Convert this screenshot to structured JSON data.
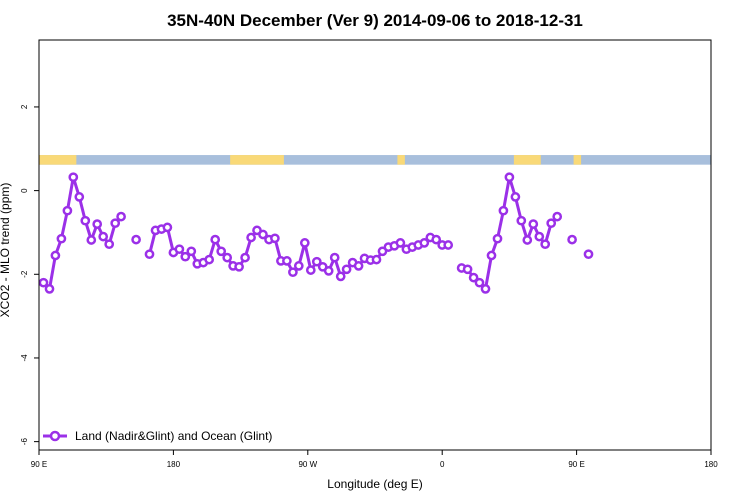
{
  "chart_data": {
    "type": "line",
    "title": "35N-40N December (Ver 9)   2014-09-06 to 2018-12-31",
    "xlabel": "Longitude (deg E)",
    "ylabel": "XCO2 - MLO trend (ppm)",
    "x_ticks": [
      {
        "value": 90,
        "label": "90 E"
      },
      {
        "value": 180,
        "label": "180"
      },
      {
        "value": 270,
        "label": "90 W"
      },
      {
        "value": 360,
        "label": "0"
      },
      {
        "value": 450,
        "label": "90 E"
      },
      {
        "value": 540,
        "label": "180"
      }
    ],
    "y_ticks": [
      -6,
      -4,
      -2,
      0,
      2
    ],
    "xlim": [
      90,
      540
    ],
    "ylim": [
      -6.2,
      3.6
    ],
    "grid": false,
    "legend": {
      "position": "bottom-left",
      "entries": [
        "Land (Nadir&Glint) and Ocean (Glint)"
      ]
    },
    "series": [
      {
        "name": "Land (Nadir&Glint) and Ocean (Glint)",
        "color": "#9b30e8",
        "segments": [
          [
            [
              93,
              -2.2
            ],
            [
              97,
              -2.35
            ],
            [
              101,
              -1.55
            ],
            [
              105,
              -1.15
            ],
            [
              109,
              -0.48
            ],
            [
              113,
              0.32
            ],
            [
              117,
              -0.15
            ],
            [
              121,
              -0.72
            ],
            [
              125,
              -1.18
            ],
            [
              129,
              -0.8
            ],
            [
              133,
              -1.1
            ],
            [
              137,
              -1.28
            ],
            [
              141,
              -0.78
            ],
            [
              145,
              -0.62
            ]
          ],
          [
            [
              155,
              -1.17
            ]
          ],
          [
            [
              164,
              -1.52
            ],
            [
              168,
              -0.95
            ],
            [
              172,
              -0.92
            ],
            [
              176,
              -0.88
            ],
            [
              180,
              -1.48
            ],
            [
              184,
              -1.4
            ],
            [
              188,
              -1.58
            ],
            [
              192,
              -1.45
            ],
            [
              196,
              -1.75
            ],
            [
              200,
              -1.72
            ],
            [
              204,
              -1.65
            ],
            [
              208,
              -1.17
            ],
            [
              212,
              -1.45
            ],
            [
              216,
              -1.6
            ],
            [
              220,
              -1.8
            ],
            [
              224,
              -1.82
            ],
            [
              228,
              -1.6
            ],
            [
              232,
              -1.12
            ],
            [
              236,
              -0.95
            ],
            [
              240,
              -1.05
            ],
            [
              244,
              -1.17
            ],
            [
              248,
              -1.14
            ],
            [
              252,
              -1.68
            ],
            [
              256,
              -1.68
            ],
            [
              260,
              -1.95
            ],
            [
              264,
              -1.8
            ],
            [
              268,
              -1.25
            ],
            [
              272,
              -1.9
            ],
            [
              276,
              -1.7
            ],
            [
              280,
              -1.82
            ],
            [
              284,
              -1.92
            ],
            [
              288,
              -1.6
            ],
            [
              292,
              -2.05
            ],
            [
              296,
              -1.88
            ],
            [
              300,
              -1.72
            ],
            [
              304,
              -1.8
            ],
            [
              308,
              -1.62
            ],
            [
              312,
              -1.66
            ],
            [
              316,
              -1.65
            ],
            [
              320,
              -1.45
            ],
            [
              324,
              -1.35
            ],
            [
              328,
              -1.32
            ],
            [
              332,
              -1.25
            ],
            [
              336,
              -1.4
            ],
            [
              340,
              -1.35
            ],
            [
              344,
              -1.3
            ],
            [
              348,
              -1.25
            ],
            [
              352,
              -1.12
            ],
            [
              356,
              -1.17
            ],
            [
              360,
              -1.3
            ],
            [
              364,
              -1.3
            ]
          ]
        ]
      },
      {
        "name": "",
        "color": "#9b30e8",
        "segments": [
          [
            [
              373,
              -1.85
            ],
            [
              377,
              -1.88
            ],
            [
              381,
              -2.08
            ],
            [
              385,
              -2.2
            ],
            [
              389,
              -2.35
            ],
            [
              393,
              -1.55
            ],
            [
              397,
              -1.15
            ],
            [
              401,
              -0.48
            ],
            [
              405,
              0.32
            ],
            [
              409,
              -0.15
            ],
            [
              413,
              -0.72
            ],
            [
              417,
              -1.18
            ],
            [
              421,
              -0.8
            ],
            [
              425,
              -1.1
            ],
            [
              429,
              -1.28
            ],
            [
              433,
              -0.78
            ],
            [
              437,
              -0.62
            ]
          ],
          [
            [
              447,
              -1.17
            ]
          ],
          [
            [
              458,
              -1.52
            ]
          ]
        ]
      }
    ],
    "land_ocean_band": {
      "y_range": [
        0.62,
        0.85
      ],
      "ocean_color": "#a8bfdc",
      "land_color": "#f9d978",
      "land_spans": [
        [
          90,
          115
        ],
        [
          218,
          254
        ],
        [
          330,
          335
        ],
        [
          408,
          426
        ],
        [
          448,
          453
        ]
      ]
    }
  }
}
